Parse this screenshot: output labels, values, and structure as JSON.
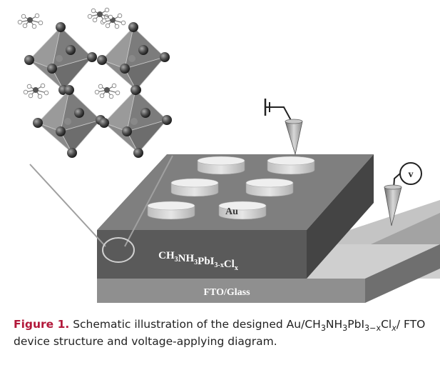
{
  "diagram": {
    "labels": {
      "au": "Au",
      "perovskite": {
        "base": "CH",
        "parts": [
          {
            "t": "CH"
          },
          {
            "t": "3",
            "sub": true
          },
          {
            "t": "NH"
          },
          {
            "t": "3",
            "sub": true
          },
          {
            "t": "PbI"
          },
          {
            "t": "3-x",
            "sub": true
          },
          {
            "t": "Cl"
          },
          {
            "t": "x",
            "sub": true
          }
        ]
      },
      "substrate": "FTO/Glass",
      "voltmeter": "v"
    }
  },
  "caption": {
    "label": "Figure 1.",
    "parts": [
      {
        "t": " Schematic illustration of the designed Au/CH"
      },
      {
        "t": "3",
        "sub": true
      },
      {
        "t": "NH"
      },
      {
        "t": "3",
        "sub": true
      },
      {
        "t": "PbI"
      },
      {
        "t": "3−x",
        "sub": true
      },
      {
        "t": "Cl"
      },
      {
        "t": "x",
        "sub": true,
        "italic": true
      },
      {
        "t": "/ FTO device structure and voltage-applying diagram."
      }
    ]
  }
}
